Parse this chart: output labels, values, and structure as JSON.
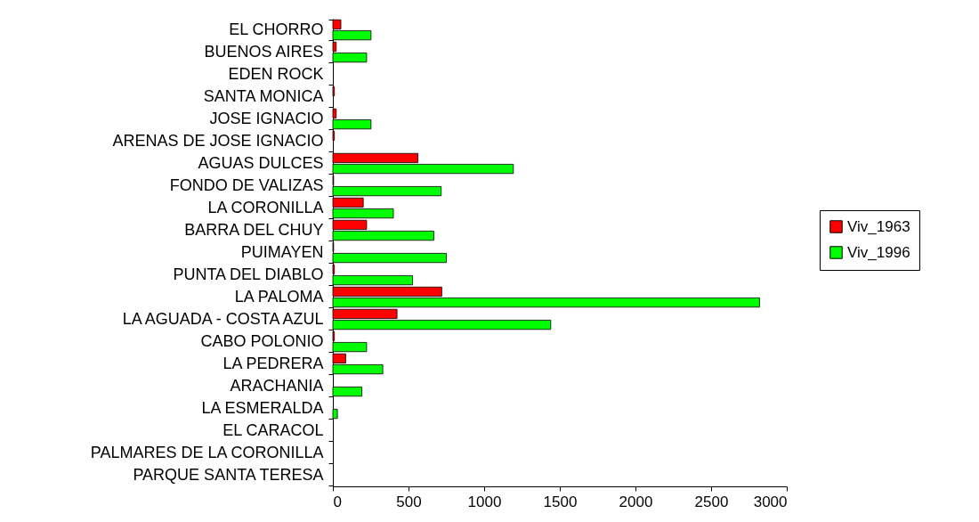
{
  "chart_data": {
    "type": "bar",
    "orientation": "horizontal",
    "categories": [
      "EL CHORRO",
      "BUENOS AIRES",
      "EDEN ROCK",
      "SANTA MONICA",
      "JOSE IGNACIO",
      "ARENAS DE JOSE IGNACIO",
      "AGUAS DULCES",
      "FONDO DE VALIZAS",
      "LA CORONILLA",
      "BARRA DEL CHUY",
      "PUIMAYEN",
      "PUNTA DEL DIABLO",
      "LA PALOMA",
      "LA AGUADA - COSTA AZUL",
      "CABO POLONIO",
      "LA PEDRERA",
      "ARACHANIA",
      "LA ESMERALDA",
      "EL CARACOL",
      "PALMARES DE LA CORONILLA",
      "PARQUE SANTA TERESA"
    ],
    "series": [
      {
        "name": "Viv_1963",
        "color": "#ff0000",
        "values": [
          53,
          22,
          0,
          10,
          22,
          10,
          562,
          5,
          201,
          223,
          5,
          10,
          720,
          424,
          10,
          85,
          0,
          0,
          0,
          0,
          0
        ]
      },
      {
        "name": "Viv_1996",
        "color": "#00ff00",
        "values": [
          252,
          223,
          0,
          0,
          252,
          0,
          1193,
          716,
          400,
          667,
          750,
          527,
          2820,
          1440,
          223,
          330,
          192,
          30,
          0,
          0,
          0
        ]
      }
    ],
    "xlim": [
      0,
      3000
    ],
    "xticks": [
      0,
      500,
      {
        "value": 1000,
        "label": "1000"
      },
      {
        "value": 1500,
        "label": "1500"
      },
      {
        "value": 2000,
        "label": "2000"
      },
      {
        "value": 2500,
        "label": "2500"
      },
      {
        "value": 3000,
        "label": "3000"
      }
    ],
    "grid": false,
    "legend": "right"
  }
}
